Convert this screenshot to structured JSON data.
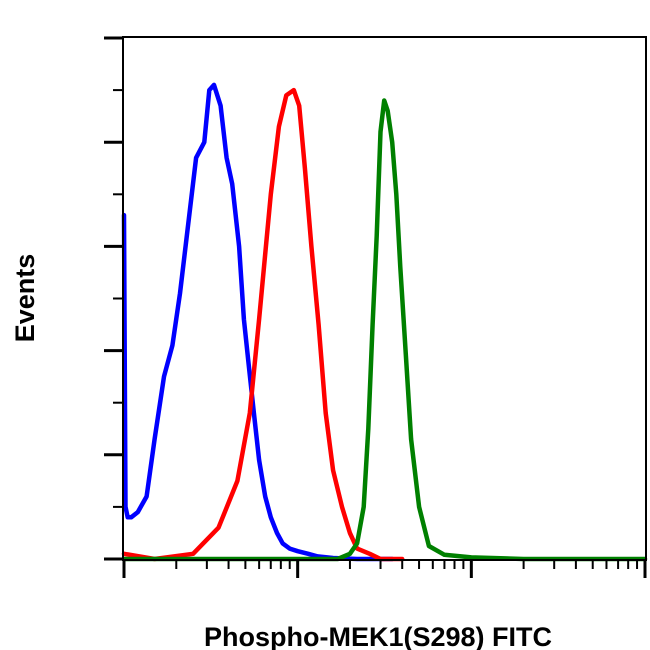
{
  "chart_data": {
    "type": "line",
    "title": "",
    "xlabel": "Phospho-MEK1(S298) FITC",
    "ylabel": "Events",
    "x_scale": "log",
    "xlim": [
      1,
      1000
    ],
    "ylim": [
      0,
      100
    ],
    "x_ticks": [
      1,
      10,
      100,
      1000
    ],
    "y_ticks": [
      0,
      20,
      40,
      60,
      80,
      100
    ],
    "grid": false,
    "legend": "none",
    "series": [
      {
        "color": "#0000ff",
        "x": [
          1.0,
          1.02,
          1.05,
          1.1,
          1.2,
          1.35,
          1.5,
          1.7,
          1.9,
          2.1,
          2.3,
          2.6,
          2.9,
          3.1,
          3.3,
          3.6,
          3.9,
          4.2,
          4.6,
          4.9,
          5.2,
          5.6,
          6.0,
          6.5,
          7.0,
          7.6,
          8.2,
          9.0,
          10.0,
          11.5,
          13.0,
          16.0,
          22.0,
          35.0
        ],
        "y": [
          66,
          10,
          8,
          8,
          9,
          12,
          23,
          35,
          41,
          51,
          62,
          77,
          80,
          90,
          91,
          87,
          77,
          72,
          60,
          46,
          38,
          28,
          19,
          12,
          8,
          5,
          3,
          2,
          1.5,
          1,
          0.5,
          0.2,
          0,
          0
        ]
      },
      {
        "color": "#ff0000",
        "x": [
          1.0,
          1.5,
          2.5,
          3.5,
          4.5,
          5.3,
          6.0,
          7.0,
          7.8,
          8.6,
          9.5,
          10.2,
          11.0,
          12.0,
          13.2,
          14.5,
          16.0,
          18.0,
          20.0,
          22.0,
          26.0,
          30.0,
          40.0
        ],
        "y": [
          1,
          0,
          1,
          6,
          15,
          28,
          46,
          70,
          83,
          89,
          90,
          87,
          75,
          60,
          45,
          28,
          17,
          10,
          5,
          2,
          1,
          0,
          0
        ]
      },
      {
        "color": "#008000",
        "x": [
          1.0,
          15.0,
          17.0,
          20.0,
          22.0,
          24.0,
          25.5,
          27.0,
          28.5,
          30.0,
          31.5,
          33.0,
          35.0,
          37.0,
          39.0,
          42.0,
          45.0,
          50.0,
          57.0,
          70.0,
          100.0,
          200.0,
          500.0,
          1000.0
        ],
        "y": [
          0,
          0,
          0,
          1,
          3,
          10,
          25,
          45,
          62,
          82,
          88,
          86,
          80,
          70,
          56,
          39,
          23,
          10,
          2.5,
          0.8,
          0.3,
          0,
          0,
          0
        ]
      }
    ]
  }
}
